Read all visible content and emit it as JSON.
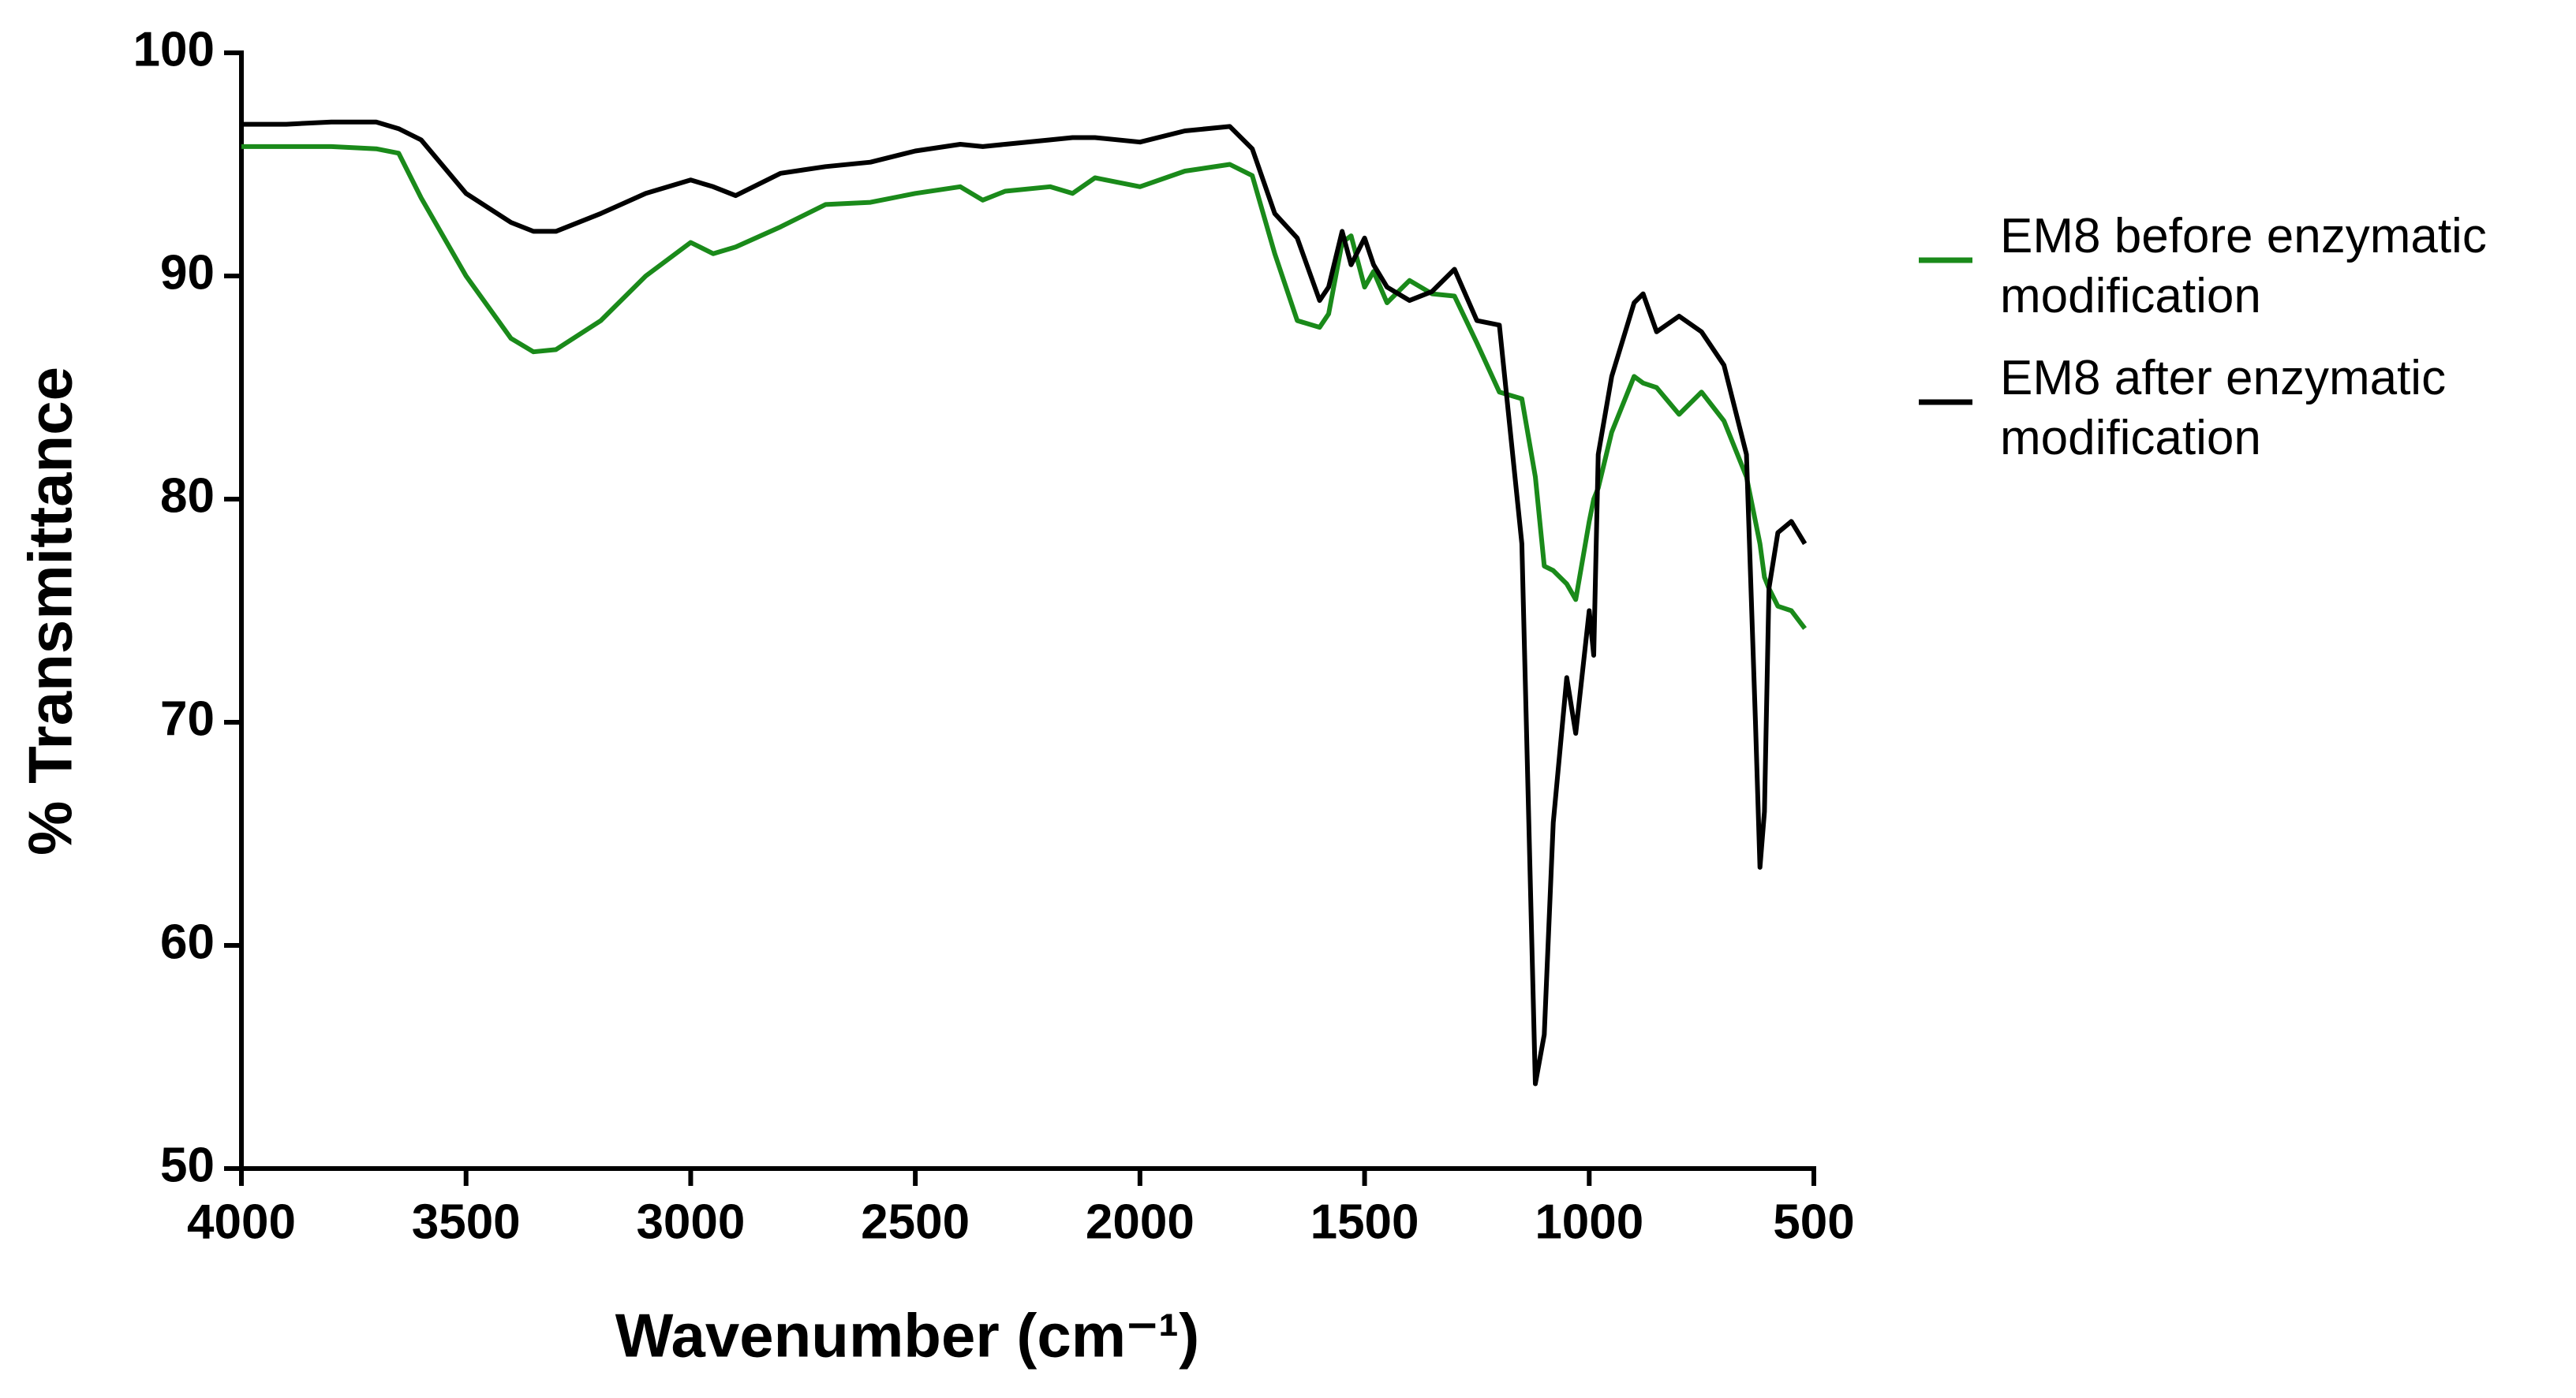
{
  "chart_data": {
    "type": "line",
    "x_label": "Wavenumber (cm⁻¹)",
    "y_label": "% Transmittance",
    "x": [
      4000,
      3900,
      3800,
      3700,
      3650,
      3600,
      3500,
      3400,
      3350,
      3300,
      3200,
      3100,
      3000,
      2950,
      2900,
      2800,
      2700,
      2600,
      2500,
      2400,
      2350,
      2300,
      2200,
      2150,
      2100,
      2000,
      1900,
      1800,
      1750,
      1700,
      1650,
      1600,
      1580,
      1550,
      1530,
      1500,
      1480,
      1450,
      1400,
      1350,
      1300,
      1250,
      1200,
      1150,
      1120,
      1100,
      1080,
      1050,
      1030,
      1000,
      990,
      980,
      950,
      900,
      880,
      850,
      800,
      750,
      700,
      650,
      630,
      620,
      610,
      600,
      580,
      550,
      520
    ],
    "series": [
      {
        "name": "EM8 before enzymatic modification",
        "color": "#1a8a1a",
        "values": [
          95.8,
          95.8,
          95.8,
          95.7,
          95.5,
          93.5,
          90.0,
          87.2,
          86.6,
          86.7,
          88.0,
          90.0,
          91.5,
          91.0,
          91.3,
          92.2,
          93.2,
          93.3,
          93.7,
          94.0,
          93.4,
          93.8,
          94.0,
          93.7,
          94.4,
          94.0,
          94.7,
          95.0,
          94.5,
          91.0,
          88.0,
          87.7,
          88.3,
          91.5,
          91.8,
          89.5,
          90.2,
          88.8,
          89.8,
          89.2,
          89.1,
          87.0,
          84.8,
          84.5,
          81.0,
          77.0,
          76.8,
          76.2,
          75.5,
          79.0,
          80.0,
          80.5,
          83.0,
          85.5,
          85.2,
          85.0,
          83.8,
          84.8,
          83.5,
          81.0,
          79.0,
          78.0,
          76.5,
          76.0,
          75.2,
          75.0,
          74.2
        ]
      },
      {
        "name": "EM8 after enzymatic modification",
        "color": "#000000",
        "values": [
          96.8,
          96.8,
          96.9,
          96.9,
          96.6,
          96.1,
          93.7,
          92.4,
          92.0,
          92.0,
          92.8,
          93.7,
          94.3,
          94.0,
          93.6,
          94.6,
          94.9,
          95.1,
          95.6,
          95.9,
          95.8,
          95.9,
          96.1,
          96.2,
          96.2,
          96.0,
          96.5,
          96.7,
          95.7,
          92.8,
          91.7,
          88.9,
          89.5,
          92.0,
          90.5,
          91.7,
          90.5,
          89.5,
          88.9,
          89.3,
          90.3,
          88.0,
          87.8,
          78.0,
          53.8,
          56.0,
          65.5,
          72.0,
          69.5,
          75.0,
          73.0,
          82.0,
          85.5,
          88.8,
          89.2,
          87.5,
          88.2,
          87.5,
          86.0,
          82.0,
          70.0,
          63.5,
          66.0,
          76.0,
          78.5,
          79.0,
          78.0
        ]
      }
    ],
    "xlim": [
      4000,
      500
    ],
    "xticks": [
      4000,
      3500,
      3000,
      2500,
      2000,
      1500,
      1000,
      500
    ],
    "ylim": [
      50,
      100
    ],
    "yticks": [
      50,
      60,
      70,
      80,
      90,
      100
    ],
    "grid": false,
    "legend": "right"
  }
}
